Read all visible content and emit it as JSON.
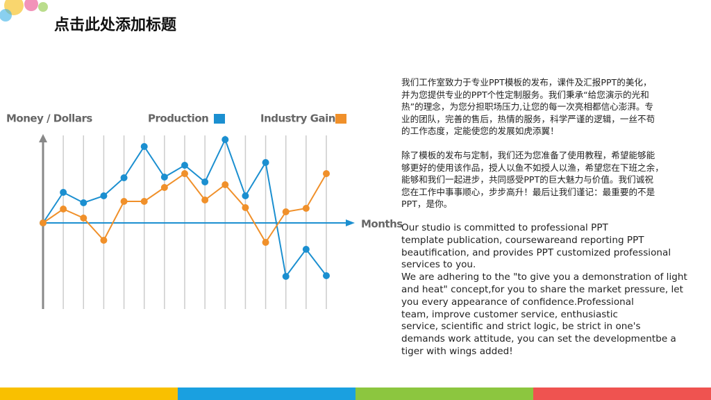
{
  "slide": {
    "title": "点击此处添加标题",
    "paragraphs_cn": [
      [
        "我们工作室致力于专业PPT模板的发布，课件及汇报PPT的美化，",
        "并为您提供专业的PPT个性定制服务。我们秉承“给您演示的光和",
        "热”的理念，为您分担职场压力,让您的每一次亮相都信心澎湃。专",
        "业的团队，完善的售后，热情的服务，科学严谨的逻辑，一丝不苟",
        "的工作态度，定能使您的发展如虎添翼！"
      ],
      [
        "除了模板的发布与定制，我们还为您准备了使用教程，希望能够能",
        "够更好的使用该作品，授人以鱼不如授人以渔，希望您在下班之余，",
        "能够和我们一起进步，共同感受PPT的巨大魅力与价值。我们诚祝",
        "您在工作中事事顺心，步步高升！最后让我们谨记：最重要的不是",
        "PPT，是你。"
      ]
    ],
    "paragraph_en": [
      "Our studio is committed to professional PPT",
      "template publication, coursewareand reporting PPT",
      "beautification, and provides PPT customized professional",
      "services to you.",
      "We are adhering to the \"to give you a demonstration of light",
      "and heat\" concept,for you to share the market pressure, let",
      "you every appearance of confidence.Professional",
      "team, improve customer service, enthusiastic",
      "service, scientific and strict logic, be strict in one's",
      "demands work attitude, you can set the developmentbe a",
      "tiger with wings added!"
    ]
  },
  "chart_data": {
    "type": "line",
    "ylabel": "Money / Dollars",
    "xlabel": "Months",
    "categories": [
      null,
      null,
      null,
      null,
      null,
      null,
      null,
      null,
      null,
      null,
      null,
      null,
      null,
      null,
      null
    ],
    "ylim": [
      -12.4,
      12.6
    ],
    "series": [
      {
        "name": "Production",
        "color": "#1b8fd0",
        "values": [
          0,
          4.4,
          2.9,
          3.9,
          6.5,
          11,
          6.6,
          8.3,
          5.9,
          12,
          3.9,
          8.7,
          -7.7,
          -3.8,
          -7.6
        ]
      },
      {
        "name": "Industry Gain",
        "color": "#f0902a",
        "values": [
          0,
          2,
          0.7,
          -2.5,
          3.1,
          3.1,
          5.1,
          7.1,
          3.3,
          5.5,
          2.2,
          -2.8,
          1.6,
          2.1,
          7.1
        ]
      }
    ]
  }
}
